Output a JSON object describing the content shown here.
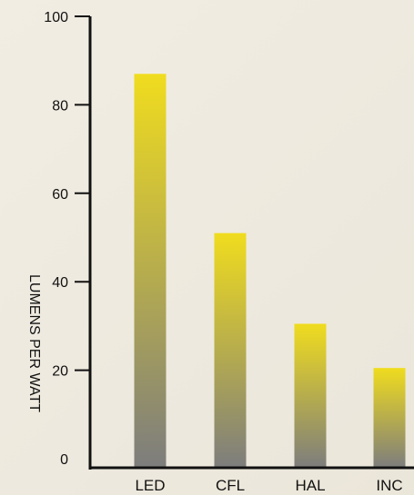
{
  "chart_data": {
    "type": "bar",
    "title": "",
    "xlabel": "",
    "ylabel": "LUMENS PER WATT",
    "categories": [
      "LED",
      "CFL",
      "HAL",
      "INC"
    ],
    "values": [
      87,
      51,
      30.5,
      20.5
    ],
    "ylim": [
      0,
      100
    ],
    "yticks": [
      0,
      20,
      40,
      60,
      80,
      100
    ],
    "grid": false,
    "legend": "none",
    "colors": {
      "bar_top": "#f0dc1e",
      "bar_bottom": "#7d7d7d",
      "axis": "#111111"
    }
  }
}
